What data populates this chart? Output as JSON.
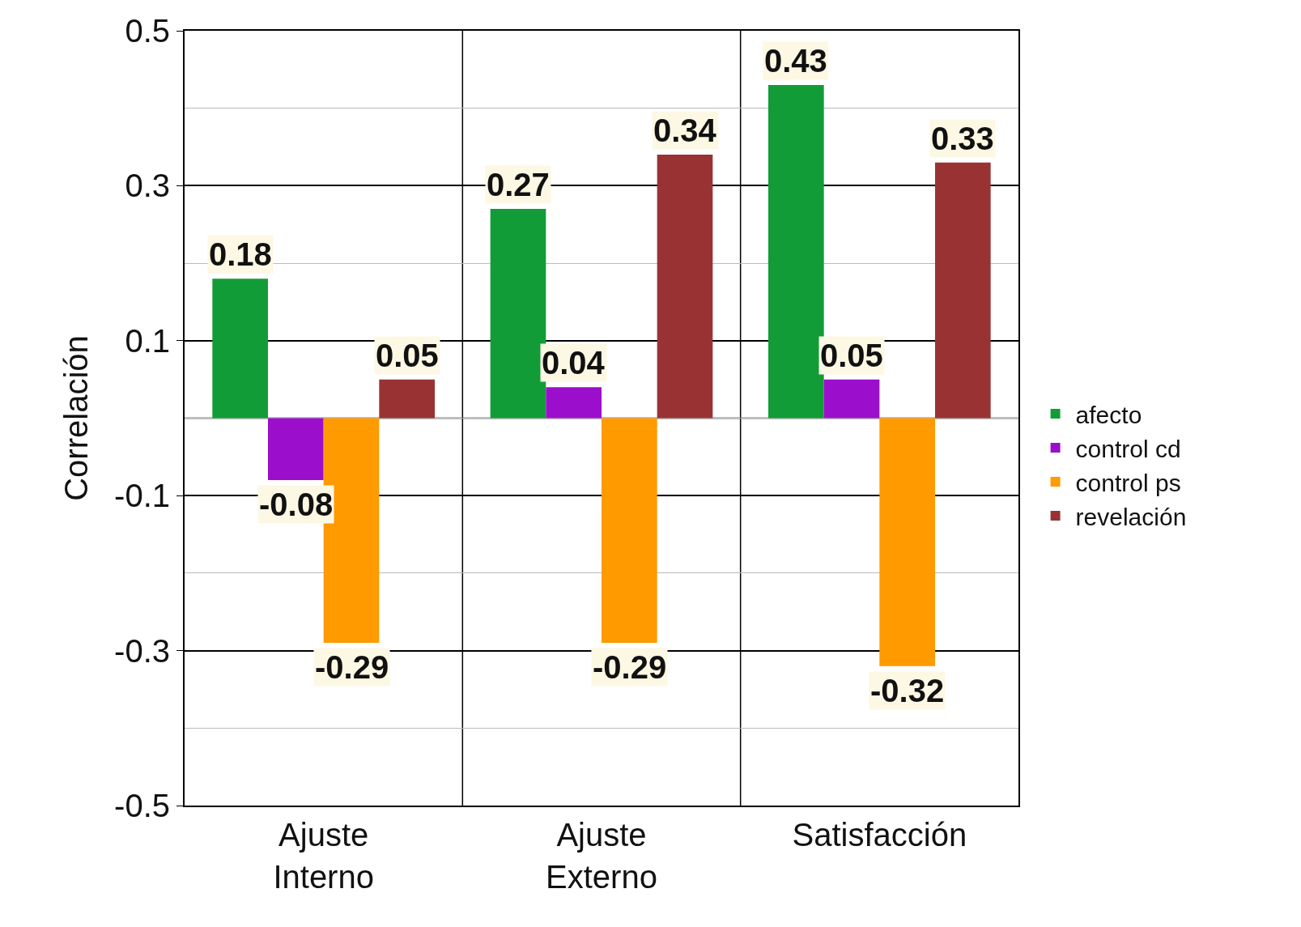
{
  "chart_data": {
    "type": "bar",
    "ylabel": "Correlación",
    "categories": [
      "Ajuste Interno",
      "Ajuste Externo",
      "Satisfacción"
    ],
    "series": [
      {
        "name": "afecto",
        "color": "#129c37",
        "values": [
          0.18,
          0.27,
          0.43
        ]
      },
      {
        "name": "control cd",
        "color": "#9b0fcc",
        "values": [
          -0.08,
          0.04,
          0.05
        ]
      },
      {
        "name": "control ps",
        "color": "#ff9a00",
        "values": [
          -0.29,
          -0.29,
          -0.32
        ]
      },
      {
        "name": "revelación",
        "color": "#993333",
        "values": [
          0.05,
          0.34,
          0.33
        ]
      }
    ],
    "ylim": [
      -0.5,
      0.5
    ],
    "yticks": [
      -0.5,
      {
        "value": -0.4,
        "label": null
      },
      -0.3,
      {
        "value": -0.2,
        "label": null
      },
      -0.1,
      {
        "value": 0,
        "label": null
      },
      0.1,
      {
        "value": 0.2,
        "label": null
      },
      0.3,
      {
        "value": 0.4,
        "label": null
      },
      0.5
    ],
    "grid": true,
    "legend": "right",
    "data_labels": true
  }
}
